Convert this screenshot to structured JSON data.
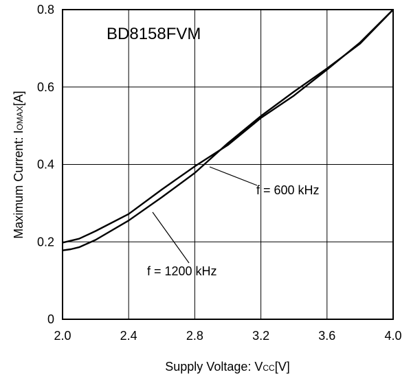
{
  "chart_data": {
    "type": "line",
    "title": "BD8158FVM",
    "xlabel": "Supply Voltage: V",
    "xlabel_sub": "CC",
    "xlabel_unit": "[V]",
    "ylabel": "Maximum Current: I",
    "ylabel_sub": "OMAX",
    "ylabel_unit": "[A]",
    "xlim": [
      2.0,
      4.0
    ],
    "ylim": [
      0,
      0.8
    ],
    "xticks": [
      "2.0",
      "2.4",
      "2.8",
      "3.2",
      "3.6",
      "4.0"
    ],
    "yticks": [
      "0",
      "0.2",
      "0.4",
      "0.6",
      "0.8"
    ],
    "grid": true,
    "series": [
      {
        "name": "f = 600 kHz",
        "x": [
          2.0,
          2.05,
          2.1,
          2.2,
          2.4,
          2.6,
          2.8,
          3.0,
          3.2,
          3.4,
          3.6,
          3.8,
          4.0
        ],
        "y": [
          0.198,
          0.203,
          0.208,
          0.228,
          0.272,
          0.335,
          0.395,
          0.45,
          0.52,
          0.578,
          0.645,
          0.715,
          0.8
        ]
      },
      {
        "name": "f = 1200 kHz",
        "x": [
          2.0,
          2.05,
          2.1,
          2.2,
          2.4,
          2.6,
          2.8,
          3.0,
          3.2,
          3.4,
          3.6,
          3.8,
          4.0
        ],
        "y": [
          0.178,
          0.181,
          0.186,
          0.205,
          0.255,
          0.315,
          0.378,
          0.455,
          0.525,
          0.588,
          0.648,
          0.712,
          0.8
        ]
      }
    ],
    "annotations": [
      {
        "text": "f = 600 kHz"
      },
      {
        "text": "f = 1200 kHz"
      }
    ]
  }
}
